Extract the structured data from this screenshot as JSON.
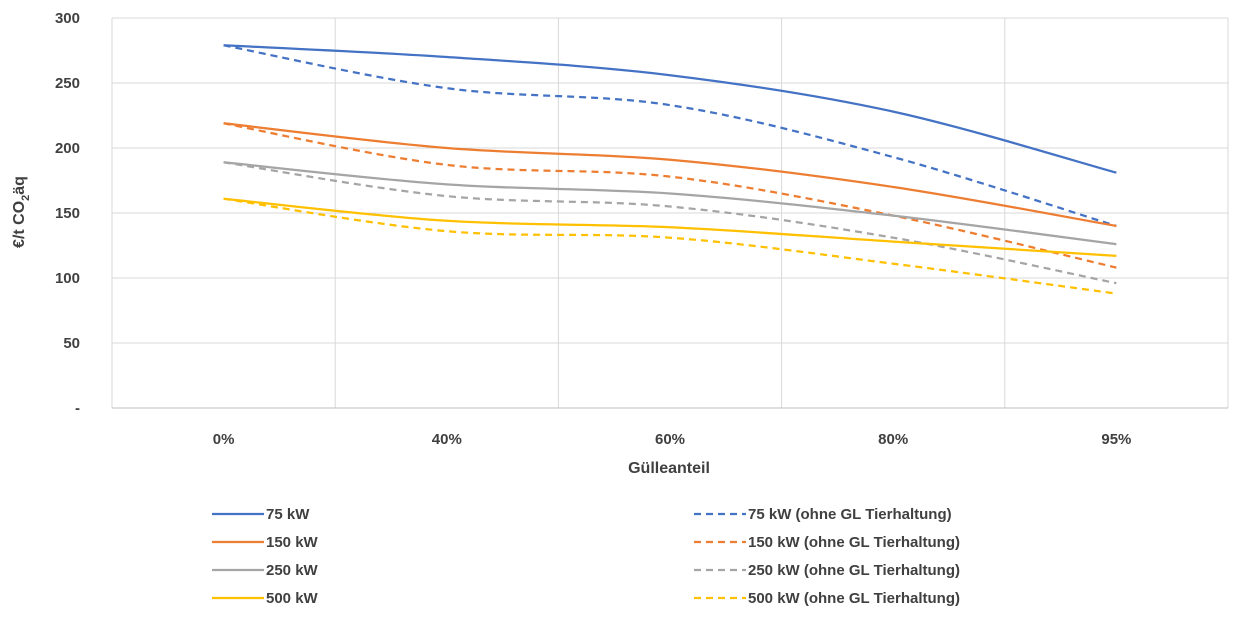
{
  "chart_data": {
    "type": "line",
    "title": "",
    "xlabel": "Gülleanteil",
    "ylabel": "€/t CO₂äq",
    "ylabel_parts": {
      "main": "€/t CO",
      "sub": "2",
      "tail": "äq"
    },
    "categories": [
      "0%",
      "40%",
      "60%",
      "80%",
      "95%"
    ],
    "y_ticks": [
      {
        "value": 0,
        "label": "-"
      },
      {
        "value": 50,
        "label": "50"
      },
      {
        "value": 100,
        "label": "100"
      },
      {
        "value": 150,
        "label": "150"
      },
      {
        "value": 200,
        "label": "200"
      },
      {
        "value": 250,
        "label": "250"
      },
      {
        "value": 300,
        "label": "300"
      }
    ],
    "ylim": [
      0,
      300
    ],
    "grid": true,
    "legend_position": "bottom",
    "series": [
      {
        "name": "75 kW",
        "color": "#4472C4",
        "dash": false,
        "values": [
          279,
          270,
          256,
          228,
          181
        ]
      },
      {
        "name": "75 kW (ohne GL Tierhaltung)",
        "color": "#4472C4",
        "dash": true,
        "values": [
          279,
          246,
          233,
          193,
          140
        ]
      },
      {
        "name": "150 kW",
        "color": "#ED7D31",
        "dash": false,
        "values": [
          219,
          200,
          191,
          170,
          140
        ]
      },
      {
        "name": "150 kW (ohne GL Tierhaltung)",
        "color": "#ED7D31",
        "dash": true,
        "values": [
          219,
          187,
          178,
          148,
          108
        ]
      },
      {
        "name": "250 kW",
        "color": "#A5A5A5",
        "dash": false,
        "values": [
          189,
          172,
          165,
          148,
          126
        ]
      },
      {
        "name": "250 kW (ohne GL Tierhaltung)",
        "color": "#A5A5A5",
        "dash": true,
        "values": [
          189,
          163,
          155,
          131,
          96
        ]
      },
      {
        "name": "500 kW",
        "color": "#FFC000",
        "dash": false,
        "values": [
          161,
          144,
          139,
          128,
          117
        ]
      },
      {
        "name": "500 kW (ohne GL Tierhaltung)",
        "color": "#FFC000",
        "dash": true,
        "values": [
          161,
          136,
          131,
          111,
          88
        ]
      }
    ]
  }
}
